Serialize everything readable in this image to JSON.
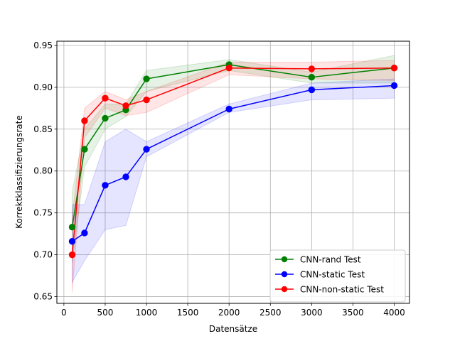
{
  "chart_data": {
    "type": "line",
    "xlabel": "Datensätze",
    "ylabel": "Korrektklassifizierungsrate",
    "xlim": [
      -85,
      4185
    ],
    "ylim": [
      0.642,
      0.955
    ],
    "xticks": [
      0,
      500,
      1000,
      1500,
      2000,
      2500,
      3000,
      3500,
      4000
    ],
    "yticks": [
      0.65,
      0.7,
      0.75,
      0.8,
      0.85,
      0.9,
      0.95
    ],
    "ytick_labels": [
      "0.65",
      "0.70",
      "0.75",
      "0.80",
      "0.85",
      "0.90",
      "0.95"
    ],
    "grid": true,
    "legend_position": "lower-right",
    "x": [
      100,
      250,
      500,
      750,
      1000,
      2000,
      3000,
      4000
    ],
    "series": [
      {
        "name": "CNN-rand Test",
        "color": "#008000",
        "values": [
          0.733,
          0.826,
          0.863,
          0.873,
          0.91,
          0.927,
          0.912,
          0.923
        ],
        "lower": [
          0.69,
          0.805,
          0.85,
          0.865,
          0.895,
          0.92,
          0.905,
          0.905
        ],
        "upper": [
          0.775,
          0.85,
          0.88,
          0.88,
          0.92,
          0.933,
          0.918,
          0.938
        ]
      },
      {
        "name": "CNN-static Test",
        "color": "#0000ff",
        "values": [
          0.716,
          0.726,
          0.783,
          0.793,
          0.826,
          0.874,
          0.897,
          0.902
        ],
        "lower": [
          0.667,
          0.693,
          0.73,
          0.735,
          0.817,
          0.87,
          0.885,
          0.887
        ],
        "upper": [
          0.76,
          0.76,
          0.835,
          0.85,
          0.835,
          0.88,
          0.905,
          0.91
        ]
      },
      {
        "name": "CNN-non-static Test",
        "color": "#ff0000",
        "values": [
          0.7,
          0.86,
          0.887,
          0.878,
          0.885,
          0.923,
          0.922,
          0.923
        ],
        "lower": [
          0.655,
          0.84,
          0.875,
          0.866,
          0.87,
          0.915,
          0.91,
          0.908
        ],
        "upper": [
          0.745,
          0.875,
          0.895,
          0.885,
          0.895,
          0.93,
          0.93,
          0.932
        ]
      }
    ]
  }
}
